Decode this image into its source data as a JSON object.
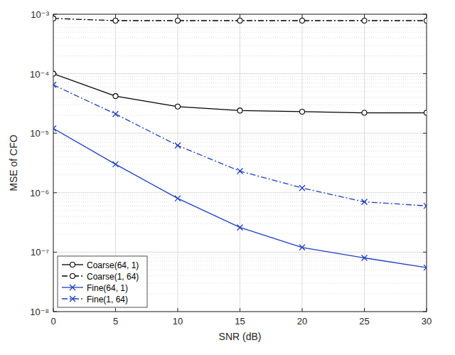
{
  "chart_data": {
    "type": "line",
    "x_label": "SNR (dB)",
    "y_label": "MSE of CFO",
    "x": [
      0,
      5,
      10,
      15,
      20,
      25,
      30
    ],
    "xlim": [
      0,
      30
    ],
    "xticks": [
      0,
      5,
      10,
      15,
      20,
      25,
      30
    ],
    "ylim": [
      1e-08,
      0.001
    ],
    "yticks": [
      {
        "value": 1e-08,
        "label": "10⁻⁸"
      },
      {
        "value": 1e-07,
        "label": "10⁻⁷"
      },
      {
        "value": 1e-06,
        "label": "10⁻⁶"
      },
      {
        "value": 1e-05,
        "label": "10⁻⁵"
      },
      {
        "value": 0.0001,
        "label": "10⁻⁴"
      },
      {
        "value": 0.001,
        "label": "10⁻³"
      }
    ],
    "log": "y",
    "grid": true,
    "legend": "southwest",
    "series": [
      {
        "name": "Coarse(64, 1)",
        "color": "#000000",
        "marker": "circle",
        "line_style": "solid",
        "values": [
          0.0001,
          4.2e-05,
          2.8e-05,
          2.4e-05,
          2.3e-05,
          2.2e-05,
          2.2e-05
        ]
      },
      {
        "name": "Coarse(1, 64)",
        "color": "#000000",
        "marker": "circle",
        "line_style": "dashdot",
        "values": [
          0.00085,
          0.00078,
          0.00078,
          0.00078,
          0.00078,
          0.00078,
          0.00078
        ]
      },
      {
        "name": "Fine(64, 1)",
        "color": "#1f3fbf",
        "marker": "x",
        "line_style": "solid",
        "values": [
          1.2e-05,
          3e-06,
          8e-07,
          2.6e-07,
          1.2e-07,
          8e-08,
          5.5e-08
        ]
      },
      {
        "name": "Fine(1, 64)",
        "color": "#1f3fbf",
        "marker": "x",
        "line_style": "dashdot",
        "values": [
          6.5e-05,
          2.1e-05,
          6.2e-06,
          2.3e-06,
          1.2e-06,
          7e-07,
          6e-07
        ]
      }
    ]
  }
}
